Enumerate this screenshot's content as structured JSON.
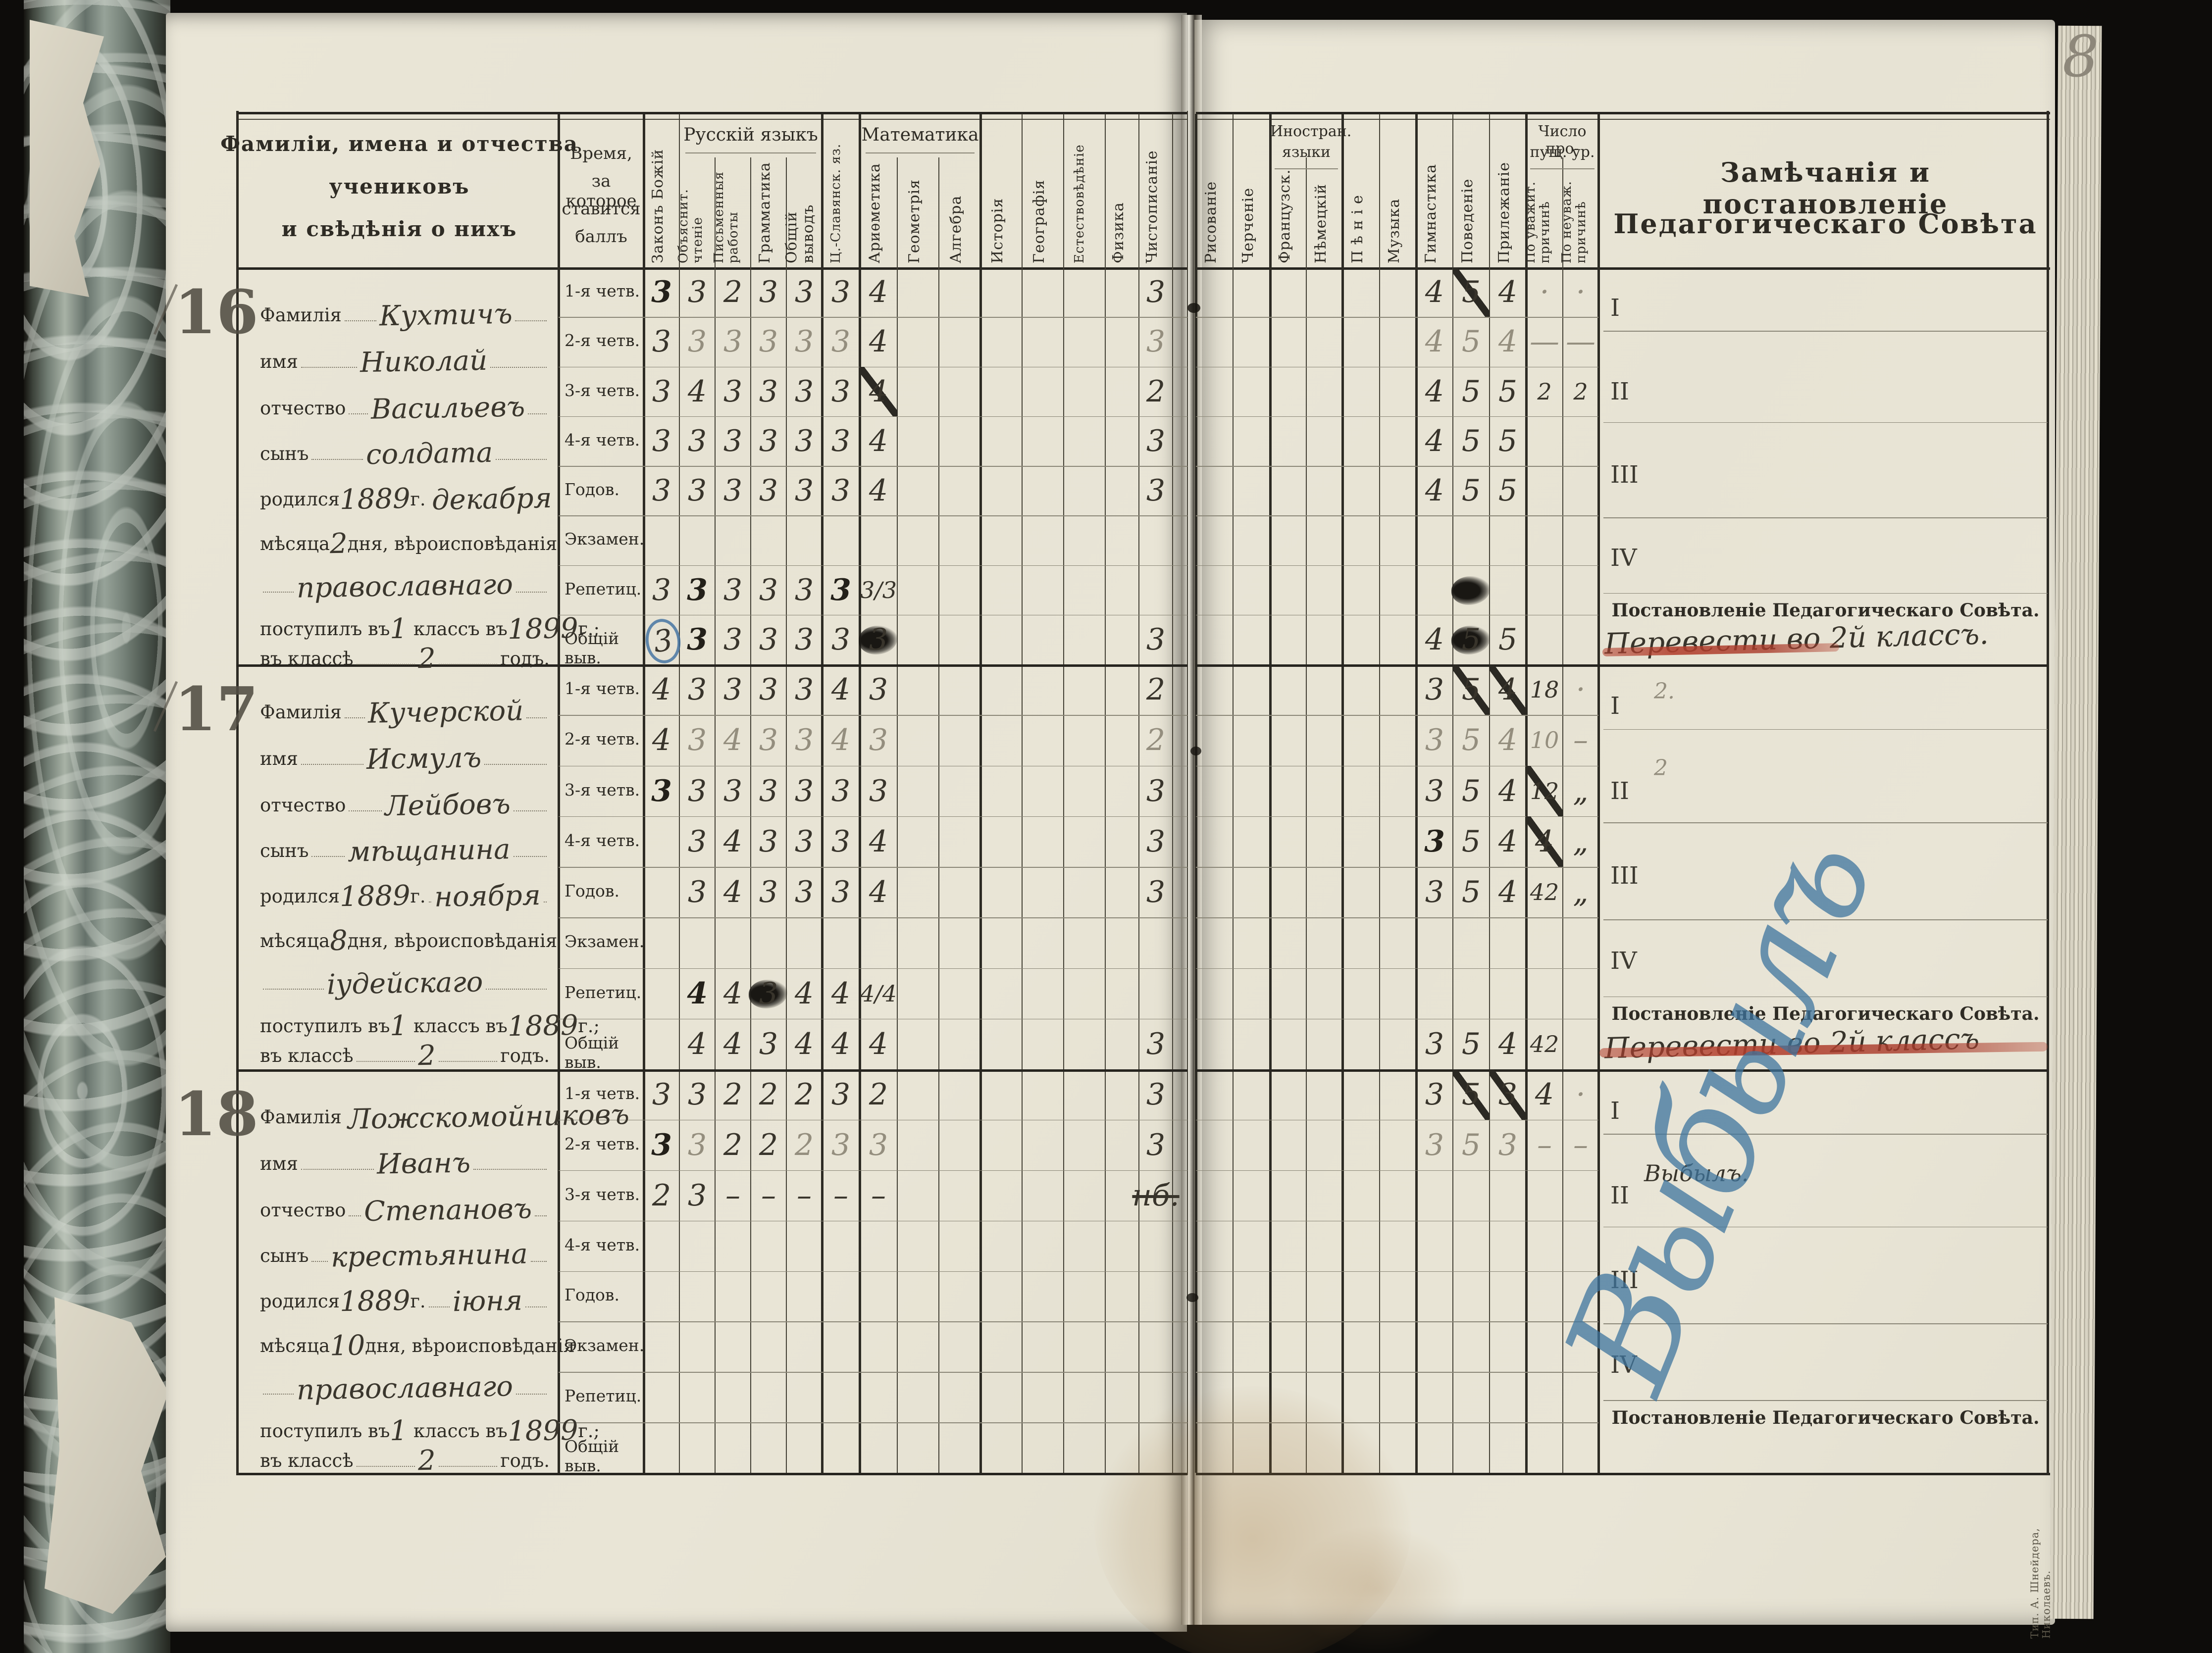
{
  "page_number": "8",
  "printer_mark": "Тип. А. Шнейдера, Николаевъ.",
  "table": {
    "name_header": [
      "Фамиліи, имена и отчества",
      "учениковъ",
      "и свѣдѣнія о нихъ"
    ],
    "time_header": [
      "Время,",
      "за которое",
      "ставится",
      "баллъ"
    ],
    "groups": {
      "russian": "Русскій языкъ",
      "math": "Математика",
      "foreign": [
        "Иностран.",
        "языки"
      ],
      "missed": [
        "Число про-",
        "пущ. ур."
      ]
    },
    "subjects": {
      "zakon": "Законъ Божій",
      "obyas": "Объяснит.\nчтеніе",
      "pism": "Письменныя\nработы",
      "gram": "Грамматика",
      "obshch": "Общій\nвыводъ",
      "tsslav": "Ц.-Славянск. яз.",
      "arifm": "Ариѳметика",
      "geom": "Геометрія",
      "alg": "Алгебра",
      "ist": "Исторія",
      "geogr": "Географія",
      "estest": "Естествовѣдѣніе",
      "fiz": "Физика",
      "chist": "Чистописаніе",
      "ris": "Рисованіе",
      "cherch": "Черченіе",
      "franc": "Французск.",
      "nem": "Нѣмецкій",
      "penie": "П ѣ н і е",
      "muz": "Музыка",
      "gimn": "Гимнастика",
      "pov": "Поведеніе",
      "pril": "Прилежаніе",
      "uvazh": "По уважит.\nпричинѣ",
      "neuvazh": "По неуваж.\nпричинѣ"
    },
    "remarks_title": [
      "Замѣчанія и постановленіе",
      "Педагогическаго Совѣта"
    ],
    "row_labels": [
      "1-я четв.",
      "2-я четв.",
      "3-я четв.",
      "4-я четв.",
      "Годов.",
      "Экзамен.",
      "Репетиц.",
      "Общій выв."
    ],
    "roman_numerals": [
      "I",
      "II",
      "III",
      "IV"
    ],
    "decision_caption": "Постановленіе Педагогическаго Совѣта."
  },
  "info_labels": {
    "surname": "Фамилія",
    "name": "имя",
    "patronymic": "отчество",
    "son": "сынъ",
    "born": "родился",
    "year_suffix": "г.",
    "month_word": "мѣсяца",
    "day_suffix": "дня, вѣроисповѣданія",
    "entered": "поступилъ въ",
    "class_in": "классъ въ",
    "entered_suffix": "г.;",
    "in_class": "въ классѣ",
    "year_word": "годъ."
  },
  "students": [
    {
      "number": "16",
      "info": {
        "surname": "Кухтичъ",
        "name": "Николай",
        "patronymic": "Васильевъ",
        "son_of": "солдата",
        "birth_year": "1889",
        "birth_month": "декабря",
        "birth_day": "2",
        "religion": "православнаго",
        "entered_class": "1",
        "entered_year": "1899",
        "class_year": "2"
      },
      "grades": [
        [
          [
            "zakon",
            "3",
            "b"
          ],
          [
            "obyas",
            "3"
          ],
          [
            "pism",
            "2"
          ],
          [
            "gram",
            "3"
          ],
          [
            "obshch",
            "3"
          ],
          [
            "tsslav",
            "3"
          ],
          [
            "arifm",
            "4"
          ],
          [
            "chist",
            "3"
          ],
          [
            "gimn",
            "4"
          ],
          [
            "pov",
            "5",
            "x"
          ],
          [
            "pril",
            "4"
          ],
          [
            "uvazh",
            "·",
            "p"
          ],
          [
            "neuvazh",
            "·",
            "p"
          ]
        ],
        [
          [
            "zakon",
            "3"
          ],
          [
            "obyas",
            "3",
            "p"
          ],
          [
            "pism",
            "3",
            "p"
          ],
          [
            "gram",
            "3",
            "p"
          ],
          [
            "obshch",
            "3",
            "p"
          ],
          [
            "tsslav",
            "3",
            "p"
          ],
          [
            "arifm",
            "4"
          ],
          [
            "chist",
            "3",
            "p"
          ],
          [
            "gimn",
            "4",
            "p"
          ],
          [
            "pov",
            "5",
            "p"
          ],
          [
            "pril",
            "4",
            "p"
          ],
          [
            "uvazh",
            "—",
            "p"
          ],
          [
            "neuvazh",
            "—",
            "p"
          ]
        ],
        [
          [
            "zakon",
            "3"
          ],
          [
            "obyas",
            "4"
          ],
          [
            "pism",
            "3"
          ],
          [
            "gram",
            "3"
          ],
          [
            "obshch",
            "3"
          ],
          [
            "tsslav",
            "3"
          ],
          [
            "arifm",
            "4",
            "x"
          ],
          [
            "chist",
            "2"
          ],
          [
            "gimn",
            "4"
          ],
          [
            "pov",
            "5"
          ],
          [
            "pril",
            "5"
          ],
          [
            "uvazh",
            "2",
            "sm"
          ],
          [
            "neuvazh",
            "2",
            "sm"
          ]
        ],
        [
          [
            "zakon",
            "3"
          ],
          [
            "obyas",
            "3"
          ],
          [
            "pism",
            "3"
          ],
          [
            "gram",
            "3"
          ],
          [
            "obshch",
            "3"
          ],
          [
            "tsslav",
            "3"
          ],
          [
            "arifm",
            "4"
          ],
          [
            "chist",
            "3"
          ],
          [
            "gimn",
            "4"
          ],
          [
            "pov",
            "5"
          ],
          [
            "pril",
            "5"
          ]
        ],
        [
          [
            "zakon",
            "3"
          ],
          [
            "obyas",
            "3"
          ],
          [
            "pism",
            "3"
          ],
          [
            "gram",
            "3"
          ],
          [
            "obshch",
            "3"
          ],
          [
            "tsslav",
            "3"
          ],
          [
            "arifm",
            "4"
          ],
          [
            "chist",
            "3"
          ],
          [
            "gimn",
            "4"
          ],
          [
            "pov",
            "5"
          ],
          [
            "pril",
            "5"
          ]
        ],
        [],
        [
          [
            "zakon",
            "3"
          ],
          [
            "obyas",
            "3",
            "b"
          ],
          [
            "pism",
            "3"
          ],
          [
            "gram",
            "3"
          ],
          [
            "obshch",
            "3"
          ],
          [
            "tsslav",
            "3",
            "b"
          ],
          [
            "arifm",
            "3/3",
            "sm"
          ],
          [
            "pov",
            "",
            "blot"
          ]
        ],
        [
          [
            "zakon",
            "3",
            "circ"
          ],
          [
            "obyas",
            "3",
            "b"
          ],
          [
            "pism",
            "3"
          ],
          [
            "gram",
            "3"
          ],
          [
            "obshch",
            "3"
          ],
          [
            "tsslav",
            "3"
          ],
          [
            "arifm",
            "3",
            "blot"
          ],
          [
            "chist",
            "3"
          ],
          [
            "gimn",
            "4"
          ],
          [
            "pov",
            "5",
            "blot"
          ],
          [
            "pril",
            "5"
          ]
        ]
      ],
      "remark_notes": [],
      "decision": "Перевести во 2й классъ.",
      "red_underline": true,
      "signature": ""
    },
    {
      "number": "17",
      "info": {
        "surname": "Кучерской",
        "name": "Исмулъ",
        "patronymic": "Лейбовъ",
        "son_of": "мѣщанина",
        "birth_year": "1889",
        "birth_month": "ноября",
        "birth_day": "8",
        "religion": "іудейскаго",
        "entered_class": "1",
        "entered_year": "1889",
        "class_year": "2"
      },
      "grades": [
        [
          [
            "zakon",
            "4"
          ],
          [
            "obyas",
            "3"
          ],
          [
            "pism",
            "3"
          ],
          [
            "gram",
            "3"
          ],
          [
            "obshch",
            "3"
          ],
          [
            "tsslav",
            "4"
          ],
          [
            "arifm",
            "3"
          ],
          [
            "chist",
            "2"
          ],
          [
            "gimn",
            "3"
          ],
          [
            "pov",
            "5",
            "x"
          ],
          [
            "pril",
            "4",
            "x"
          ],
          [
            "uvazh",
            "18",
            "sm"
          ],
          [
            "neuvazh",
            "·",
            "p"
          ]
        ],
        [
          [
            "zakon",
            "4"
          ],
          [
            "obyas",
            "3",
            "p"
          ],
          [
            "pism",
            "4",
            "p"
          ],
          [
            "gram",
            "3",
            "p"
          ],
          [
            "obshch",
            "3",
            "p"
          ],
          [
            "tsslav",
            "4",
            "p"
          ],
          [
            "arifm",
            "3",
            "p"
          ],
          [
            "chist",
            "2",
            "p"
          ],
          [
            "gimn",
            "3",
            "p"
          ],
          [
            "pov",
            "5",
            "p"
          ],
          [
            "pril",
            "4",
            "p"
          ],
          [
            "uvazh",
            "10",
            "p sm"
          ],
          [
            "neuvazh",
            "–",
            "p"
          ]
        ],
        [
          [
            "zakon",
            "3",
            "b"
          ],
          [
            "obyas",
            "3"
          ],
          [
            "pism",
            "3"
          ],
          [
            "gram",
            "3"
          ],
          [
            "obshch",
            "3"
          ],
          [
            "tsslav",
            "3"
          ],
          [
            "arifm",
            "3"
          ],
          [
            "chist",
            "3"
          ],
          [
            "gimn",
            "3"
          ],
          [
            "pov",
            "5"
          ],
          [
            "pril",
            "4"
          ],
          [
            "uvazh",
            "12",
            "sm x"
          ],
          [
            "neuvazh",
            "„"
          ]
        ],
        [
          [
            "obyas",
            "3"
          ],
          [
            "pism",
            "4"
          ],
          [
            "gram",
            "3"
          ],
          [
            "obshch",
            "3"
          ],
          [
            "tsslav",
            "3"
          ],
          [
            "arifm",
            "4"
          ],
          [
            "chist",
            "3"
          ],
          [
            "gimn",
            "3",
            "b"
          ],
          [
            "pov",
            "5"
          ],
          [
            "pril",
            "4"
          ],
          [
            "uvazh",
            "4",
            "x"
          ],
          [
            "neuvazh",
            "„"
          ]
        ],
        [
          [
            "obyas",
            "3"
          ],
          [
            "pism",
            "4"
          ],
          [
            "gram",
            "3"
          ],
          [
            "obshch",
            "3"
          ],
          [
            "tsslav",
            "3"
          ],
          [
            "arifm",
            "4"
          ],
          [
            "chist",
            "3"
          ],
          [
            "gimn",
            "3"
          ],
          [
            "pov",
            "5"
          ],
          [
            "pril",
            "4"
          ],
          [
            "uvazh",
            "42",
            "sm"
          ],
          [
            "neuvazh",
            "„"
          ]
        ],
        [],
        [
          [
            "obyas",
            "4",
            "b"
          ],
          [
            "pism",
            "4"
          ],
          [
            "gram",
            "3",
            "blot"
          ],
          [
            "obshch",
            "4"
          ],
          [
            "tsslav",
            "4"
          ],
          [
            "arifm",
            "4/4",
            "sm"
          ]
        ],
        [
          [
            "obyas",
            "4"
          ],
          [
            "pism",
            "4"
          ],
          [
            "gram",
            "3"
          ],
          [
            "obshch",
            "4"
          ],
          [
            "tsslav",
            "4"
          ],
          [
            "arifm",
            "4"
          ],
          [
            "chist",
            "3"
          ],
          [
            "gimn",
            "3"
          ],
          [
            "pov",
            "5"
          ],
          [
            "pril",
            "4"
          ],
          [
            "uvazh",
            "42",
            "sm"
          ]
        ]
      ],
      "remark_notes": [
        {
          "band": 0,
          "text": "2."
        },
        {
          "band": 1,
          "text": "2"
        }
      ],
      "decision": "Перевести во 2й классъ",
      "red_underline": true,
      "signature": ""
    },
    {
      "number": "18",
      "info": {
        "surname": "Ложскомойниковъ",
        "name": "Иванъ",
        "patronymic": "Степановъ",
        "son_of": "крестьянина",
        "birth_year": "1889",
        "birth_month": "іюня",
        "birth_day": "10",
        "religion": "православнаго",
        "entered_class": "1",
        "entered_year": "1899",
        "class_year": "2"
      },
      "grades": [
        [
          [
            "zakon",
            "3"
          ],
          [
            "obyas",
            "3"
          ],
          [
            "pism",
            "2"
          ],
          [
            "gram",
            "2"
          ],
          [
            "obshch",
            "2"
          ],
          [
            "tsslav",
            "3"
          ],
          [
            "arifm",
            "2"
          ],
          [
            "chist",
            "3"
          ],
          [
            "gimn",
            "3"
          ],
          [
            "pov",
            "5",
            "x"
          ],
          [
            "pril",
            "3",
            "x"
          ],
          [
            "uvazh",
            "4"
          ],
          [
            "neuvazh",
            "·",
            "p"
          ]
        ],
        [
          [
            "zakon",
            "3",
            "b"
          ],
          [
            "obyas",
            "3",
            "p"
          ],
          [
            "pism",
            "2"
          ],
          [
            "gram",
            "2"
          ],
          [
            "obshch",
            "2",
            "p"
          ],
          [
            "tsslav",
            "3",
            "p"
          ],
          [
            "arifm",
            "3",
            "p"
          ],
          [
            "chist",
            "3"
          ],
          [
            "gimn",
            "3",
            "p"
          ],
          [
            "pov",
            "5",
            "p"
          ],
          [
            "pril",
            "3",
            "p"
          ],
          [
            "uvazh",
            "–",
            "p"
          ],
          [
            "neuvazh",
            "–",
            "p"
          ]
        ],
        [
          [
            "zakon",
            "2"
          ],
          [
            "obyas",
            "3"
          ],
          [
            "pism",
            "–"
          ],
          [
            "gram",
            "–"
          ],
          [
            "obshch",
            "–"
          ],
          [
            "tsslav",
            "–"
          ],
          [
            "arifm",
            "–"
          ],
          [
            "chist",
            "нб.",
            "nb"
          ]
        ],
        [],
        [],
        [],
        [],
        []
      ],
      "remark_notes": [
        {
          "band": 1,
          "text": "Выбылъ.",
          "ink": true
        }
      ],
      "decision": "",
      "red_underline": false,
      "signature": "Выбылъ"
    }
  ]
}
